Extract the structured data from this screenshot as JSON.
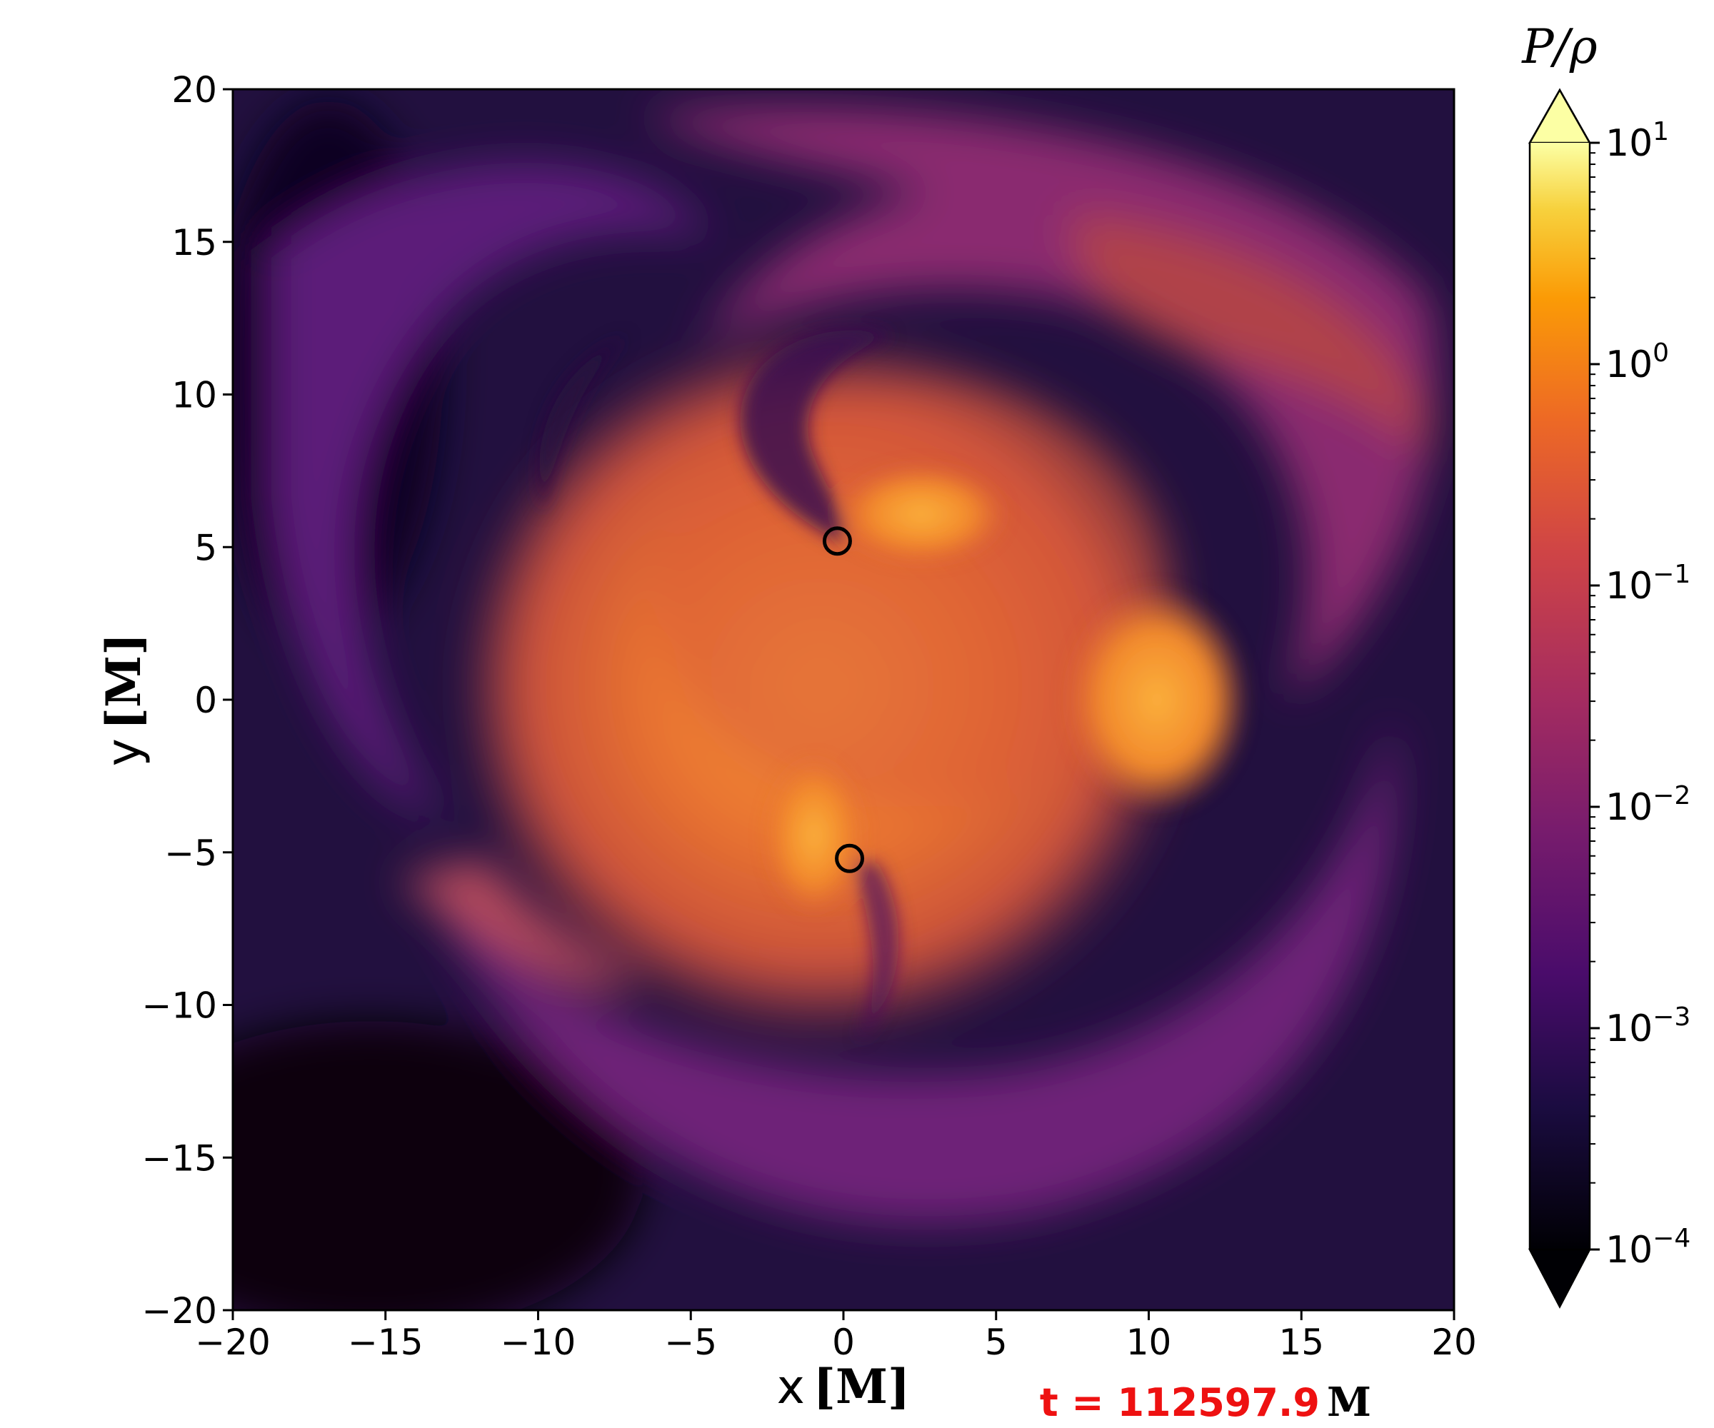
{
  "chart_data": {
    "type": "heatmap",
    "title": "",
    "xlabel": "x",
    "xlabel_unit": "[M]",
    "ylabel": "y",
    "ylabel_unit": "[M]",
    "xlim": [
      -20,
      20
    ],
    "ylim": [
      -20,
      20
    ],
    "x_ticks": [
      -20,
      -15,
      -10,
      -5,
      0,
      5,
      10,
      15,
      20
    ],
    "y_ticks": [
      -20,
      -15,
      -10,
      -5,
      0,
      5,
      10,
      15,
      20
    ],
    "x_tick_labels": [
      "−20",
      "−15",
      "−10",
      "−5",
      "0",
      "5",
      "10",
      "15",
      "20"
    ],
    "y_tick_labels": [
      "−20",
      "−15",
      "−10",
      "−5",
      "0",
      "5",
      "10",
      "15",
      "20"
    ],
    "colorbar": {
      "label": "P/ρ",
      "scale": "log",
      "range": [
        0.0001,
        10
      ],
      "extend": "both",
      "colormap": "inferno",
      "ticks": [
        {
          "base": "10",
          "exp": "1",
          "value": 10
        },
        {
          "base": "10",
          "exp": "0",
          "value": 1
        },
        {
          "base": "10",
          "exp": "−1",
          "value": 0.1
        },
        {
          "base": "10",
          "exp": "−2",
          "value": 0.01
        },
        {
          "base": "10",
          "exp": "−3",
          "value": 0.001
        },
        {
          "base": "10",
          "exp": "−4",
          "value": 0.0001
        }
      ]
    },
    "black_hole_markers": [
      {
        "x": -0.2,
        "y": 5.2
      },
      {
        "x": 0.2,
        "y": -5.2
      }
    ],
    "time_annotation": {
      "text": "t = 112597.9",
      "unit": "M",
      "color": "#ee1111"
    }
  }
}
